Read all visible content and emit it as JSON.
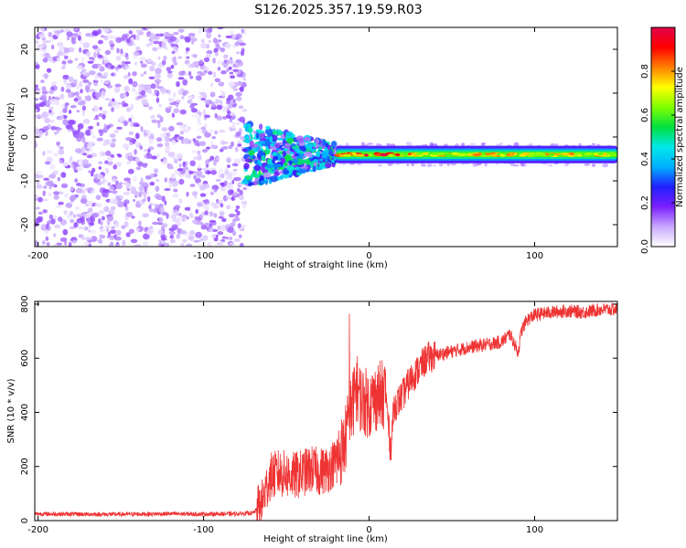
{
  "figure": {
    "title": "S126.2025.357.19.59.R03"
  },
  "chart_data": [
    {
      "type": "heatmap",
      "xlabel": "Height of straight line (km)",
      "ylabel": "Frequency (Hz)",
      "xlim": [
        -202,
        150
      ],
      "ylim": [
        -25,
        25
      ],
      "x_ticks": [
        -200,
        -100,
        0,
        100
      ],
      "y_ticks": [
        -20,
        -10,
        0,
        10,
        20
      ],
      "colorbar": {
        "label": "Normalized spectral amplitude",
        "range": [
          0,
          1
        ],
        "ticks": [
          "0.0",
          "0.2",
          "0.4",
          "0.6",
          "0.8"
        ],
        "colormap": [
          "#ffffff",
          "#c8a8ff",
          "#7a1fff",
          "#2020ff",
          "#00b0ff",
          "#00e8e8",
          "#00e040",
          "#80ff00",
          "#ffff00",
          "#ff8000",
          "#ff0000",
          "#e0004a"
        ]
      },
      "regions": [
        {
          "x_range": [
            -202,
            -75
          ],
          "freq_range": [
            -25,
            25
          ],
          "amplitude_range": [
            0.02,
            0.16
          ],
          "description_key": "noise"
        },
        {
          "x_range": [
            -75,
            -20
          ],
          "freq_range": [
            -11,
            4
          ],
          "amplitude_range": [
            0.1,
            0.55
          ]
        },
        {
          "x_range": [
            -20,
            150
          ],
          "freq_center": -4,
          "freq_halfwidth": 1.2,
          "amplitude_range": [
            0.5,
            1.0
          ]
        }
      ]
    },
    {
      "type": "line",
      "xlabel": "Height of straight line (km)",
      "ylabel": "SNR (10 * v/v)",
      "xlim": [
        -202,
        150
      ],
      "ylim": [
        0,
        810
      ],
      "x_ticks": [
        -200,
        -100,
        0,
        100
      ],
      "y_ticks": [
        0,
        200,
        400,
        600,
        800
      ],
      "color": "#ee3333",
      "series": [
        {
          "x": [
            -202,
            -180,
            -160,
            -140,
            -120,
            -100,
            -80,
            -70,
            -65,
            -60,
            -55,
            -50,
            -45,
            -40,
            -35,
            -30,
            -25,
            -20,
            -15,
            -12,
            -10,
            -8,
            -5,
            0,
            5,
            10,
            13,
            15,
            20,
            25,
            30,
            35,
            40,
            50,
            60,
            70,
            80,
            85,
            88,
            90,
            92,
            95,
            100,
            110,
            120,
            130,
            140,
            150
          ],
          "y": [
            25,
            24,
            23,
            24,
            25,
            24,
            25,
            28,
            60,
            160,
            175,
            170,
            165,
            175,
            190,
            180,
            190,
            220,
            280,
            380,
            420,
            500,
            450,
            430,
            460,
            470,
            260,
            420,
            460,
            520,
            560,
            600,
            610,
            625,
            640,
            650,
            660,
            690,
            650,
            620,
            700,
            740,
            760,
            770,
            775,
            770,
            780,
            780
          ]
        }
      ]
    }
  ]
}
